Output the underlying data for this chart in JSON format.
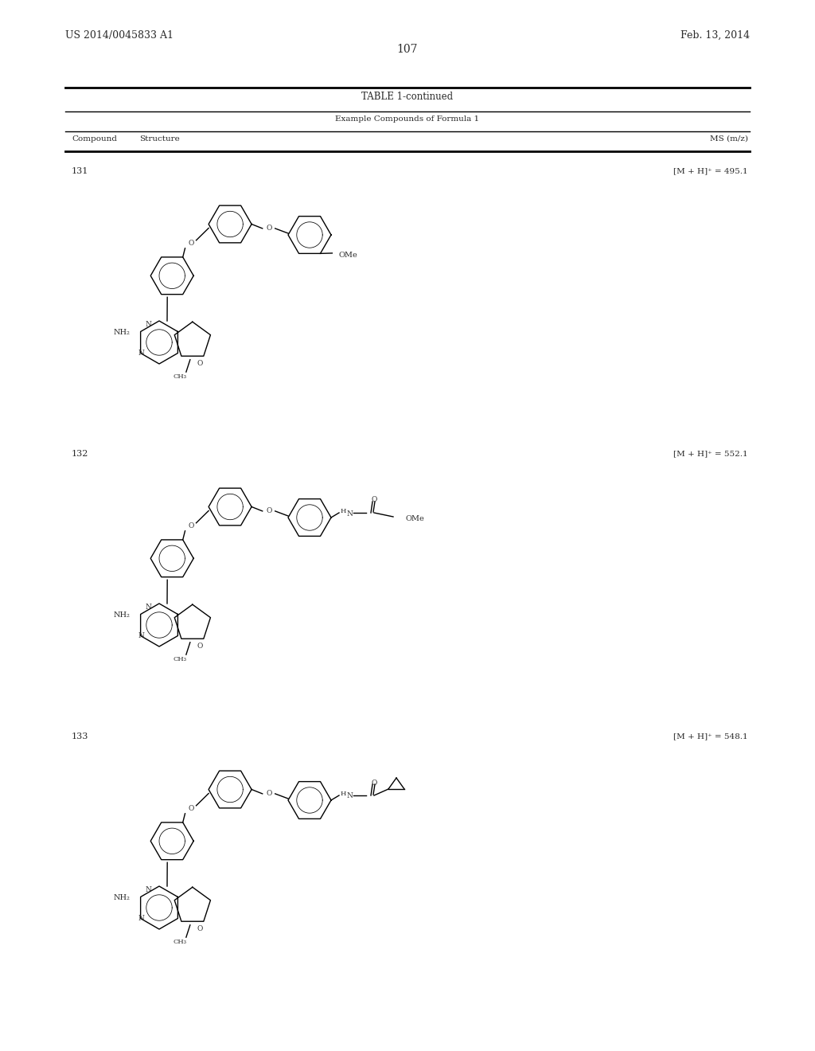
{
  "background_color": "#ffffff",
  "page_number": "107",
  "header_left": "US 2014/0045833 A1",
  "header_right": "Feb. 13, 2014",
  "table_title": "TABLE 1-continued",
  "table_subtitle": "Example Compounds of Formula 1",
  "col_compound": "Compound",
  "col_structure": "Structure",
  "col_ms": "MS (m/z)",
  "compounds": [
    {
      "number": "131",
      "ms": "[M + H]⁺ = 495.1"
    },
    {
      "number": "132",
      "ms": "[M + H]⁺ = 552.1"
    },
    {
      "number": "133",
      "ms": "[M + H]⁺ = 548.1"
    }
  ]
}
